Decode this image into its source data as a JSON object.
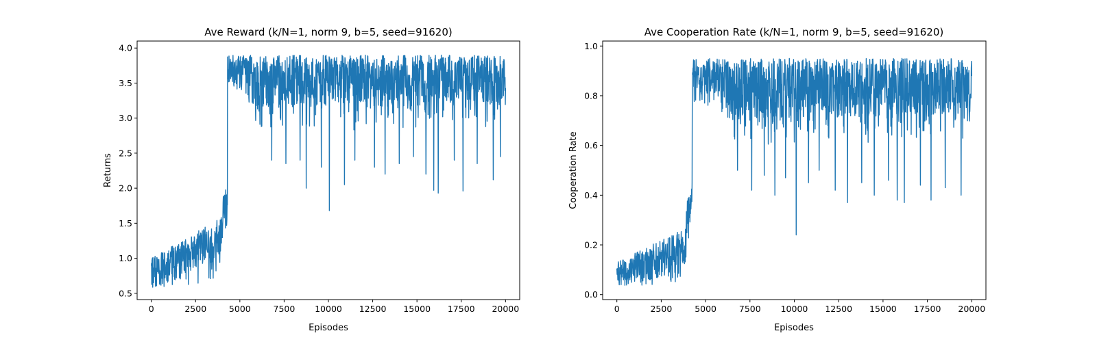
{
  "colors": {
    "series": "#1f77b4",
    "background": "#ffffff",
    "axes": "#000000"
  },
  "chart_data": [
    {
      "type": "line",
      "title": "Ave Reward (k/N=1, norm 9, b=5, seed=91620)",
      "xlabel": "Episodes",
      "ylabel": "Returns",
      "xlim": [
        -800,
        20800
      ],
      "ylim": [
        0.41,
        4.1
      ],
      "xticks": [
        0,
        2500,
        5000,
        7500,
        10000,
        12500,
        15000,
        17500,
        20000
      ],
      "yticks": [
        0.5,
        1.0,
        1.5,
        2.0,
        2.5,
        3.0,
        3.5,
        4.0
      ],
      "grid": false,
      "series": [
        {
          "num_episodes": 20000,
          "phases": [
            {
              "x_start": 0,
              "x_end": 4050,
              "low_start": 0.58,
              "low_end": 0.62,
              "high_start": 1.0,
              "high_end": 1.6
            },
            {
              "x_start": 4050,
              "x_end": 4300,
              "low_start": 1.35,
              "low_end": 1.4,
              "high_start": 1.95,
              "high_end": 2.05
            },
            {
              "x_start": 4300,
              "x_end": 5500,
              "low_start": 3.5,
              "low_end": 3.3,
              "high_start": 3.9,
              "high_end": 3.9
            },
            {
              "x_start": 5500,
              "x_end": 20000,
              "low_start": 2.75,
              "low_end": 2.8,
              "high_start": 3.9,
              "high_end": 3.9
            }
          ],
          "dips": [
            [
              6800,
              2.4
            ],
            [
              7600,
              2.35
            ],
            [
              8400,
              2.4
            ],
            [
              8750,
              2.0
            ],
            [
              9600,
              2.3
            ],
            [
              10050,
              1.68
            ],
            [
              10900,
              2.05
            ],
            [
              11500,
              2.4
            ],
            [
              12600,
              2.3
            ],
            [
              13200,
              2.2
            ],
            [
              14000,
              2.35
            ],
            [
              14800,
              2.45
            ],
            [
              15500,
              2.2
            ],
            [
              15950,
              1.97
            ],
            [
              16200,
              1.93
            ],
            [
              17100,
              2.4
            ],
            [
              17600,
              1.96
            ],
            [
              18400,
              2.35
            ],
            [
              19300,
              2.12
            ],
            [
              19700,
              2.45
            ]
          ]
        }
      ]
    },
    {
      "type": "line",
      "title": "Ave Cooperation Rate (k/N=1, norm 9, b=5, seed=91620)",
      "xlabel": "Episodes",
      "ylabel": "Cooperation Rate",
      "xlim": [
        -800,
        20800
      ],
      "ylim": [
        -0.02,
        1.02
      ],
      "xticks": [
        0,
        2500,
        5000,
        7500,
        10000,
        12500,
        15000,
        17500,
        20000
      ],
      "yticks": [
        0.0,
        0.2,
        0.4,
        0.6,
        0.8,
        1.0
      ],
      "grid": false,
      "series": [
        {
          "num_episodes": 20000,
          "phases": [
            {
              "x_start": 0,
              "x_end": 3900,
              "low_start": 0.03,
              "low_end": 0.05,
              "high_start": 0.13,
              "high_end": 0.27
            },
            {
              "x_start": 3900,
              "x_end": 4250,
              "low_start": 0.2,
              "low_end": 0.22,
              "high_start": 0.36,
              "high_end": 0.47
            },
            {
              "x_start": 4250,
              "x_end": 5800,
              "low_start": 0.78,
              "low_end": 0.72,
              "high_start": 0.95,
              "high_end": 0.95
            },
            {
              "x_start": 5800,
              "x_end": 20000,
              "low_start": 0.58,
              "low_end": 0.6,
              "high_start": 0.95,
              "high_end": 0.95
            }
          ],
          "dips": [
            [
              6800,
              0.5
            ],
            [
              7600,
              0.42
            ],
            [
              8300,
              0.48
            ],
            [
              8900,
              0.4
            ],
            [
              9500,
              0.47
            ],
            [
              10100,
              0.24
            ],
            [
              10800,
              0.45
            ],
            [
              11400,
              0.5
            ],
            [
              12300,
              0.42
            ],
            [
              13000,
              0.37
            ],
            [
              13800,
              0.45
            ],
            [
              14500,
              0.4
            ],
            [
              15300,
              0.46
            ],
            [
              15800,
              0.38
            ],
            [
              16200,
              0.37
            ],
            [
              17100,
              0.44
            ],
            [
              17700,
              0.38
            ],
            [
              18500,
              0.43
            ],
            [
              19400,
              0.4
            ]
          ]
        }
      ]
    }
  ]
}
